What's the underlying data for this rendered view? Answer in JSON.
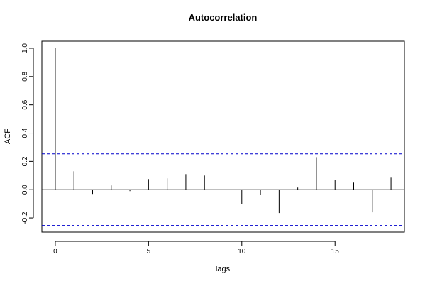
{
  "chart_data": {
    "type": "bar",
    "title": "Autocorrelation",
    "xlabel": "lags",
    "ylabel": "ACF",
    "x": [
      0,
      1,
      2,
      3,
      4,
      5,
      6,
      7,
      8,
      9,
      10,
      11,
      12,
      13,
      14,
      15,
      16,
      17,
      18
    ],
    "values": [
      1.0,
      0.13,
      -0.03,
      0.03,
      -0.01,
      0.075,
      0.08,
      0.11,
      0.1,
      0.155,
      -0.1,
      -0.035,
      -0.165,
      0.015,
      0.23,
      0.07,
      0.05,
      -0.16,
      0.09
    ],
    "xlim": [
      -0.72,
      18.72
    ],
    "ylim": [
      -0.3,
      1.05
    ],
    "xticks": [
      0,
      5,
      10,
      15
    ],
    "yticks": [
      -0.2,
      0.0,
      0.2,
      0.4,
      0.6,
      0.8,
      1.0
    ],
    "ytick_labels": [
      "-0.2",
      "0.0",
      "0.2",
      "0.4",
      "0.6",
      "0.8",
      "1.0"
    ],
    "confidence_bounds": [
      0.253,
      -0.253
    ],
    "confidence_color": "#0000cc",
    "bar_color": "#000000",
    "zero_line": true,
    "grid": false
  }
}
